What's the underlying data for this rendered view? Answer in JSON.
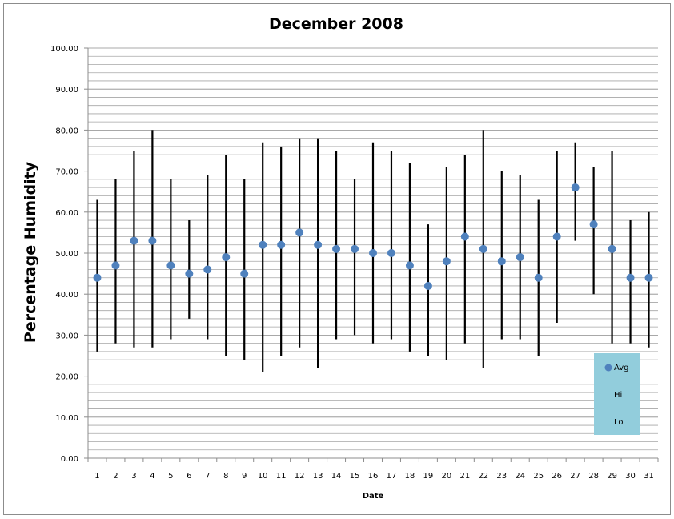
{
  "chart_data": {
    "type": "stock-hilo-avg",
    "title": "December 2008",
    "xlabel": "Date",
    "ylabel": "Percentage Humidity",
    "ylim": [
      0,
      100
    ],
    "y_major_step": 10,
    "y_minor_step": 2,
    "y_tick_labels": [
      "0.00",
      "10.00",
      "20.00",
      "30.00",
      "40.00",
      "50.00",
      "60.00",
      "70.00",
      "80.00",
      "90.00",
      "100.00"
    ],
    "grid": true,
    "legend_position": "bottom-right",
    "colors": {
      "avg": "#4f81bd",
      "hilo": "#000000",
      "legend_bg": "#92cddc",
      "grid": "#a6a6a6"
    },
    "categories": [
      "1",
      "2",
      "3",
      "4",
      "5",
      "6",
      "7",
      "8",
      "9",
      "10",
      "11",
      "12",
      "13",
      "14",
      "15",
      "16",
      "17",
      "18",
      "19",
      "20",
      "21",
      "22",
      "23",
      "24",
      "25",
      "26",
      "27",
      "28",
      "29",
      "30",
      "31"
    ],
    "series": [
      {
        "name": "Avg",
        "values": [
          44,
          47,
          53,
          53,
          47,
          45,
          46,
          49,
          45,
          52,
          52,
          55,
          52,
          51,
          51,
          50,
          50,
          47,
          42,
          48,
          54,
          51,
          48,
          49,
          44,
          54,
          66,
          57,
          51,
          44,
          44
        ]
      },
      {
        "name": "Hi",
        "values": [
          63,
          68,
          75,
          80,
          68,
          58,
          69,
          74,
          68,
          77,
          76,
          78,
          78,
          75,
          68,
          77,
          75,
          72,
          57,
          71,
          74,
          80,
          70,
          69,
          63,
          75,
          77,
          71,
          75,
          58,
          60
        ]
      },
      {
        "name": "Lo",
        "values": [
          26,
          28,
          27,
          27,
          29,
          34,
          29,
          25,
          24,
          21,
          25,
          27,
          22,
          29,
          30,
          28,
          29,
          26,
          25,
          24,
          28,
          22,
          29,
          29,
          25,
          33,
          53,
          40,
          28,
          28,
          27
        ]
      }
    ]
  }
}
